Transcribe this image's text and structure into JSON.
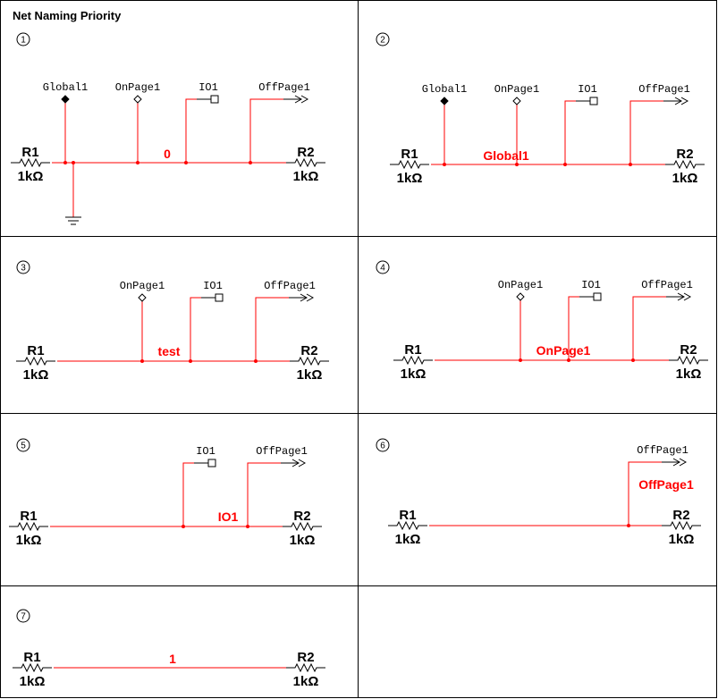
{
  "title": "Net Naming Priority",
  "colors": {
    "wire": "#ff0000",
    "net_label": "#ff0000",
    "symbol": "#000000"
  },
  "panels": [
    {
      "number": "1",
      "net_label": "0",
      "r1": {
        "ref": "R1",
        "value": "1kΩ"
      },
      "r2": {
        "ref": "R2",
        "value": "1kΩ"
      },
      "ground": true,
      "connectors": [
        {
          "type": "global",
          "label": "Global1"
        },
        {
          "type": "onpage",
          "label": "OnPage1"
        },
        {
          "type": "io",
          "label": "IO1"
        },
        {
          "type": "offpage",
          "label": "OffPage1"
        }
      ]
    },
    {
      "number": "2",
      "net_label": "Global1",
      "r1": {
        "ref": "R1",
        "value": "1kΩ"
      },
      "r2": {
        "ref": "R2",
        "value": "1kΩ"
      },
      "ground": false,
      "connectors": [
        {
          "type": "global",
          "label": "Global1"
        },
        {
          "type": "onpage",
          "label": "OnPage1"
        },
        {
          "type": "io",
          "label": "IO1"
        },
        {
          "type": "offpage",
          "label": "OffPage1"
        }
      ]
    },
    {
      "number": "3",
      "net_label": "test",
      "r1": {
        "ref": "R1",
        "value": "1kΩ"
      },
      "r2": {
        "ref": "R2",
        "value": "1kΩ"
      },
      "ground": false,
      "connectors": [
        {
          "type": "onpage",
          "label": "OnPage1"
        },
        {
          "type": "io",
          "label": "IO1"
        },
        {
          "type": "offpage",
          "label": "OffPage1"
        }
      ]
    },
    {
      "number": "4",
      "net_label": "OnPage1",
      "r1": {
        "ref": "R1",
        "value": "1kΩ"
      },
      "r2": {
        "ref": "R2",
        "value": "1kΩ"
      },
      "ground": false,
      "connectors": [
        {
          "type": "onpage",
          "label": "OnPage1"
        },
        {
          "type": "io",
          "label": "IO1"
        },
        {
          "type": "offpage",
          "label": "OffPage1"
        }
      ]
    },
    {
      "number": "5",
      "net_label": "IO1",
      "r1": {
        "ref": "R1",
        "value": "1kΩ"
      },
      "r2": {
        "ref": "R2",
        "value": "1kΩ"
      },
      "ground": false,
      "connectors": [
        {
          "type": "io",
          "label": "IO1"
        },
        {
          "type": "offpage",
          "label": "OffPage1"
        }
      ]
    },
    {
      "number": "6",
      "net_label": "OffPage1",
      "r1": {
        "ref": "R1",
        "value": "1kΩ"
      },
      "r2": {
        "ref": "R2",
        "value": "1kΩ"
      },
      "ground": false,
      "connectors": [
        {
          "type": "offpage",
          "label": "OffPage1"
        }
      ]
    },
    {
      "number": "7",
      "net_label": "1",
      "r1": {
        "ref": "R1",
        "value": "1kΩ"
      },
      "r2": {
        "ref": "R2",
        "value": "1kΩ"
      },
      "ground": false,
      "connectors": []
    }
  ]
}
